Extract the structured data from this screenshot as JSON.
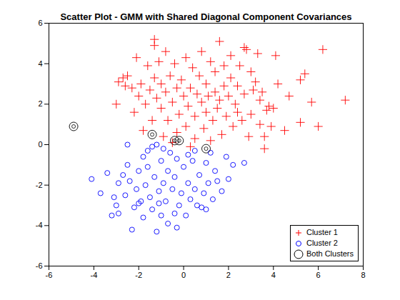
{
  "chart_data": {
    "type": "scatter",
    "title": "Scatter Plot - GMM with Shared Diagonal Component Covariances",
    "xlim": [
      -6,
      8
    ],
    "xticks": [
      -6,
      -4,
      -2,
      0,
      2,
      4,
      6,
      8
    ],
    "ylim": [
      -6,
      6
    ],
    "yticks": [
      -6,
      -4,
      -2,
      0,
      2,
      4,
      6
    ],
    "grid": false,
    "legend": "lower right",
    "series": [
      {
        "name": "Cluster 1",
        "color": "#ff0000",
        "marker": "plus",
        "values": [
          [
            7.2,
            2.2
          ],
          [
            6.2,
            4.7
          ],
          [
            6.0,
            0.9
          ],
          [
            5.7,
            2.1
          ],
          [
            5.4,
            3.5
          ],
          [
            5.2,
            3.2
          ],
          [
            5.2,
            1.1
          ],
          [
            4.5,
            0.7
          ],
          [
            4.1,
            4.4
          ],
          [
            4.0,
            1.8
          ],
          [
            3.8,
            1.9
          ],
          [
            3.7,
            1.7
          ],
          [
            3.6,
            -0.2
          ],
          [
            3.6,
            0.4
          ],
          [
            3.5,
            2.6
          ],
          [
            3.4,
            2.2
          ],
          [
            3.3,
            4.5
          ],
          [
            3.2,
            3.1
          ],
          [
            3.1,
            2.7
          ],
          [
            3.0,
            1.5
          ],
          [
            3.0,
            3.6
          ],
          [
            2.8,
            4.7
          ],
          [
            2.7,
            4.8
          ],
          [
            2.7,
            2.5
          ],
          [
            2.6,
            1.2
          ],
          [
            2.5,
            3.9
          ],
          [
            2.4,
            2.9
          ],
          [
            2.3,
            2.0
          ],
          [
            2.2,
            0.9
          ],
          [
            2.1,
            4.4
          ],
          [
            2.1,
            3.3
          ],
          [
            2.0,
            2.4
          ],
          [
            1.9,
            1.4
          ],
          [
            1.8,
            2.9
          ],
          [
            1.8,
            3.9
          ],
          [
            1.7,
            0.5
          ],
          [
            1.6,
            5.1
          ],
          [
            1.6,
            2.2
          ],
          [
            1.5,
            1.8
          ],
          [
            1.4,
            3.6
          ],
          [
            1.4,
            2.6
          ],
          [
            1.3,
            1.2
          ],
          [
            1.2,
            4.1
          ],
          [
            1.1,
            2.4
          ],
          [
            1.0,
            3.0
          ],
          [
            1.0,
            1.6
          ],
          [
            0.9,
            0.8
          ],
          [
            0.8,
            4.6
          ],
          [
            0.8,
            2.1
          ],
          [
            0.7,
            3.4
          ],
          [
            0.6,
            2.5
          ],
          [
            0.5,
            1.4
          ],
          [
            0.5,
            0.3
          ],
          [
            0.4,
            3.8
          ],
          [
            0.3,
            2.8
          ],
          [
            0.2,
            1.9
          ],
          [
            0.1,
            4.3
          ],
          [
            0.1,
            0.9
          ],
          [
            0.0,
            2.4
          ],
          [
            -0.1,
            3.2
          ],
          [
            -0.2,
            1.5
          ],
          [
            -0.3,
            2.8
          ],
          [
            -0.3,
            0.6
          ],
          [
            -0.4,
            4.0
          ],
          [
            -0.5,
            2.1
          ],
          [
            -0.6,
            3.4
          ],
          [
            -0.7,
            1.2
          ],
          [
            -0.8,
            2.6
          ],
          [
            -0.8,
            4.6
          ],
          [
            -0.9,
            0.4
          ],
          [
            -1.0,
            3.0
          ],
          [
            -1.0,
            1.8
          ],
          [
            -1.1,
            4.1
          ],
          [
            -1.2,
            2.3
          ],
          [
            -1.3,
            5.2
          ],
          [
            -1.3,
            4.9
          ],
          [
            -1.3,
            3.3
          ],
          [
            -1.4,
            1.2
          ],
          [
            -1.5,
            2.7
          ],
          [
            -1.6,
            3.9
          ],
          [
            -1.7,
            2.0
          ],
          [
            -1.8,
            0.7
          ],
          [
            -1.9,
            3.0
          ],
          [
            -2.0,
            2.4
          ],
          [
            -2.1,
            4.3
          ],
          [
            -2.2,
            1.6
          ],
          [
            -2.3,
            2.8
          ],
          [
            -2.5,
            3.4
          ],
          [
            -2.6,
            2.9
          ],
          [
            -2.7,
            3.3
          ],
          [
            -2.9,
            3.1
          ],
          [
            -3.0,
            2.0
          ],
          [
            3.9,
            0.9
          ],
          [
            4.7,
            2.4
          ],
          [
            2.9,
            0.4
          ],
          [
            0.3,
            -0.1
          ],
          [
            -0.5,
            0.1
          ],
          [
            1.2,
            0.2
          ],
          [
            3.4,
            1.0
          ],
          [
            2.4,
            1.6
          ],
          [
            4.2,
            3.0
          ]
        ]
      },
      {
        "name": "Cluster 2",
        "color": "#0000ff",
        "marker": "circle",
        "values": [
          [
            -4.1,
            -1.7
          ],
          [
            -3.7,
            -2.4
          ],
          [
            -3.4,
            -1.4
          ],
          [
            -3.2,
            -3.5
          ],
          [
            -3.0,
            -3.0
          ],
          [
            -2.9,
            -3.4
          ],
          [
            -2.9,
            -1.9
          ],
          [
            -2.6,
            -2.5
          ],
          [
            -2.5,
            0.0
          ],
          [
            -2.5,
            -1.0
          ],
          [
            -2.4,
            -1.8
          ],
          [
            -2.3,
            -4.2
          ],
          [
            -2.2,
            -3.1
          ],
          [
            -2.1,
            -2.2
          ],
          [
            -2.0,
            -1.3
          ],
          [
            -1.9,
            -2.8
          ],
          [
            -1.8,
            -0.6
          ],
          [
            -1.8,
            -3.6
          ],
          [
            -1.7,
            -2.0
          ],
          [
            -1.6,
            -1.1
          ],
          [
            -1.5,
            -2.6
          ],
          [
            -1.4,
            -0.1
          ],
          [
            -1.4,
            -3.2
          ],
          [
            -1.3,
            -1.6
          ],
          [
            -1.2,
            0.0
          ],
          [
            -1.2,
            -4.3
          ],
          [
            -1.1,
            -2.3
          ],
          [
            -1.0,
            -0.8
          ],
          [
            -1.0,
            -3.5
          ],
          [
            -0.9,
            -1.9
          ],
          [
            -0.8,
            -2.8
          ],
          [
            -0.7,
            -1.3
          ],
          [
            -0.7,
            -3.9
          ],
          [
            -0.6,
            -0.4
          ],
          [
            -0.5,
            -2.2
          ],
          [
            -0.4,
            -1.6
          ],
          [
            -0.3,
            -4.1
          ],
          [
            -0.3,
            -0.7
          ],
          [
            -0.2,
            -3.0
          ],
          [
            -0.1,
            -2.4
          ],
          [
            0.0,
            -1.1
          ],
          [
            0.1,
            -3.5
          ],
          [
            0.2,
            -1.9
          ],
          [
            0.3,
            -2.7
          ],
          [
            0.4,
            -0.8
          ],
          [
            0.5,
            -0.3
          ],
          [
            0.5,
            -2.2
          ],
          [
            0.6,
            -3.0
          ],
          [
            0.7,
            -1.5
          ],
          [
            0.8,
            -3.1
          ],
          [
            0.9,
            -2.4
          ],
          [
            1.0,
            -3.2
          ],
          [
            1.0,
            -0.9
          ],
          [
            1.1,
            -1.9
          ],
          [
            1.3,
            -2.7
          ],
          [
            1.4,
            -1.3
          ],
          [
            1.5,
            -1.8
          ],
          [
            1.7,
            -2.3
          ],
          [
            1.9,
            -0.6
          ],
          [
            2.2,
            -1.0
          ],
          [
            2.7,
            -0.9
          ],
          [
            -3.1,
            -2.6
          ],
          [
            -2.7,
            -1.5
          ],
          [
            -1.6,
            -0.3
          ],
          [
            -0.9,
            -0.2
          ],
          [
            0.2,
            -0.5
          ],
          [
            1.2,
            -0.4
          ],
          [
            -2.0,
            -2.9
          ],
          [
            -1.1,
            -2.9
          ],
          [
            -0.4,
            -3.4
          ],
          [
            2.0,
            -1.7
          ]
        ]
      },
      {
        "name": "Both Clusters",
        "color": "#000000",
        "marker": "circle",
        "values": [
          [
            -4.9,
            0.9
          ],
          [
            -1.4,
            0.5
          ],
          [
            -0.4,
            0.2
          ],
          [
            -0.2,
            0.2
          ],
          [
            1.0,
            -0.2
          ]
        ]
      }
    ]
  }
}
